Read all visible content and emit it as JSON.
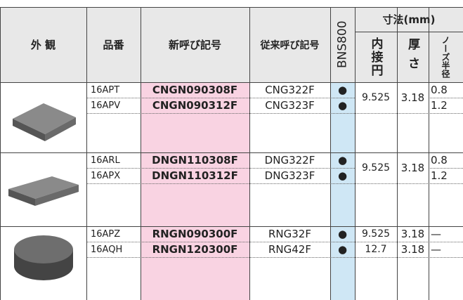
{
  "header": {
    "appearance": "外 観",
    "part_no": "品番",
    "new_code": "新呼び記号",
    "old_code": "従来呼び記号",
    "grade": "BNS800",
    "dimensions": "寸法(mm)",
    "inscribed_circle": "内接円",
    "thickness": "厚さ",
    "nose_radius": "ノーズ半径"
  },
  "groups": [
    {
      "inscribed_circle": "9.525",
      "thickness": "3.18",
      "rows": [
        {
          "part_no": "16APT",
          "new_code": "CNGN090308F",
          "old_code": "CNG322F",
          "stock": "●",
          "nose_radius": "0.8"
        },
        {
          "part_no": "16APV",
          "new_code": "CNGN090312F",
          "old_code": "CNG323F",
          "stock": "●",
          "nose_radius": "1.2"
        }
      ]
    },
    {
      "inscribed_circle": "9.525",
      "thickness": "3.18",
      "rows": [
        {
          "part_no": "16ARL",
          "new_code": "DNGN110308F",
          "old_code": "DNG322F",
          "stock": "●",
          "nose_radius": "0.8"
        },
        {
          "part_no": "16APX",
          "new_code": "DNGN110312F",
          "old_code": "DNG323F",
          "stock": "●",
          "nose_radius": "1.2"
        }
      ]
    },
    {
      "rows": [
        {
          "part_no": "16APZ",
          "new_code": "RNGN090300F",
          "old_code": "RNG32F",
          "stock": "●",
          "inscribed_circle": "9.525",
          "thickness": "3.18",
          "nose_radius": "—"
        },
        {
          "part_no": "16AQH",
          "new_code": "RNGN120300F",
          "old_code": "RNG42F",
          "stock": "●",
          "inscribed_circle": "12.7",
          "thickness": "3.18",
          "nose_radius": "—"
        }
      ]
    }
  ]
}
